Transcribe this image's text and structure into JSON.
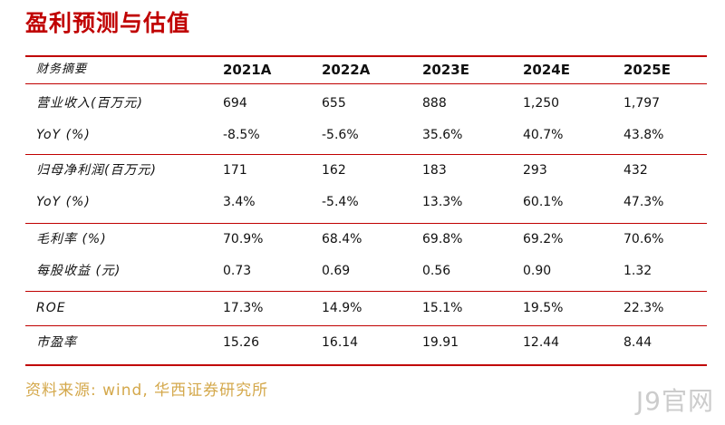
{
  "title": "盈利预测与估值",
  "table": {
    "header": {
      "label": "财务摘要",
      "years": [
        "2021A",
        "2022A",
        "2023E",
        "2024E",
        "2025E"
      ]
    },
    "rows": [
      {
        "label": "营业收入(百万元)",
        "values": [
          "694",
          "655",
          "888",
          "1,250",
          "1,797"
        ]
      },
      {
        "label": "YoY (%)",
        "values": [
          "-8.5%",
          "-5.6%",
          "35.6%",
          "40.7%",
          "43.8%"
        ]
      },
      {
        "label": "归母净利润(百万元)",
        "values": [
          "171",
          "162",
          "183",
          "293",
          "432"
        ]
      },
      {
        "label": "YoY (%)",
        "values": [
          "3.4%",
          "-5.4%",
          "13.3%",
          "60.1%",
          "47.3%"
        ]
      },
      {
        "label": "毛利率 (%)",
        "values": [
          "70.9%",
          "68.4%",
          "69.8%",
          "69.2%",
          "70.6%"
        ]
      },
      {
        "label": "每股收益 (元)",
        "values": [
          "0.73",
          "0.69",
          "0.56",
          "0.90",
          "1.32"
        ]
      },
      {
        "label": "ROE",
        "values": [
          "17.3%",
          "14.9%",
          "15.1%",
          "19.5%",
          "22.3%"
        ]
      },
      {
        "label": "市盈率",
        "values": [
          "15.26",
          "16.14",
          "19.91",
          "12.44",
          "8.44"
        ]
      }
    ]
  },
  "source": "资料来源: wind, 华西证券研究所",
  "watermark": "J9官网",
  "colors": {
    "accent": "#c00000",
    "source": "#d4a84b"
  }
}
